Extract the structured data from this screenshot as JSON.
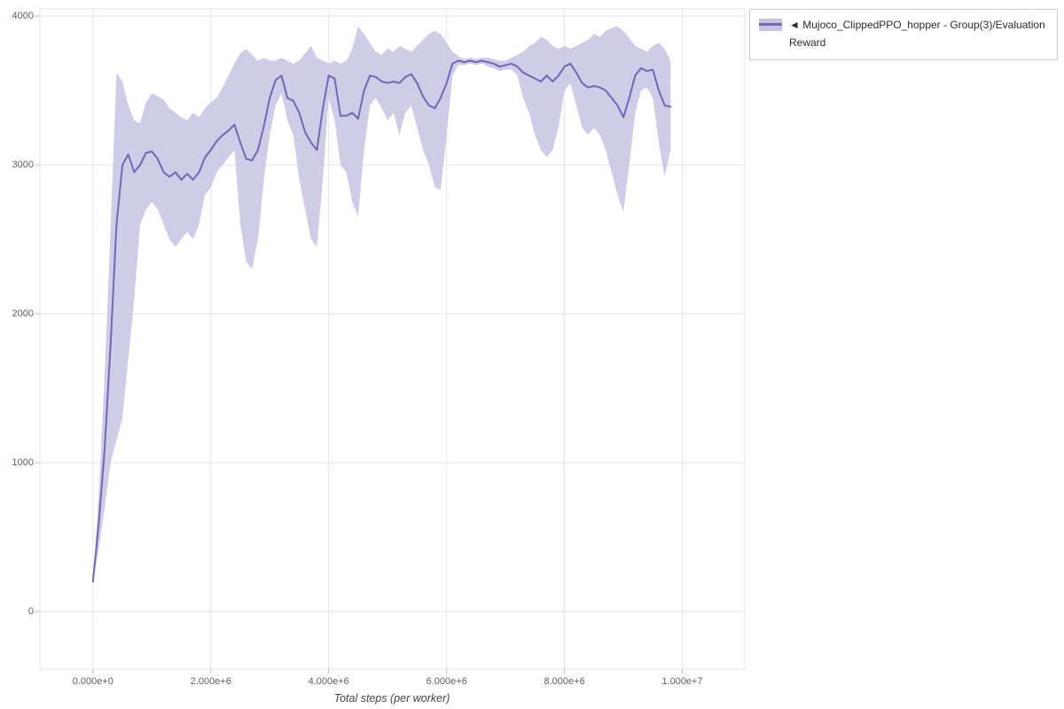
{
  "legend": {
    "marker": "◄",
    "label": "Mujoco_ClippedPPO_hopper - Group(3)/Evaluation Reward"
  },
  "colors": {
    "line": "#6f69b3",
    "band": "#c7c3e3",
    "band_opacity": 0.85,
    "grid": "#e5e5e5",
    "outline": "#e5e5e5",
    "tick_mark": "#bbbbbb",
    "tick_label": "#5f5f5f",
    "axis_label": "#444444",
    "legend_border": "#cccccc"
  },
  "chart_data": {
    "type": "line",
    "title": "",
    "xlabel": "Total steps (per worker)",
    "ylabel": "",
    "grid": true,
    "legend_position": "top-right-outside",
    "xlim": [
      -900000,
      11060000
    ],
    "ylim": [
      -387,
      4048
    ],
    "x_tick_values": [
      0,
      2000000,
      4000000,
      6000000,
      8000000,
      10000000
    ],
    "x_tick_labels": [
      "0.000e+0",
      "2.000e+6",
      "4.000e+6",
      "6.000e+6",
      "8.000e+6",
      "1.000e+7"
    ],
    "y_tick_values": [
      0,
      1000,
      2000,
      3000,
      4000
    ],
    "y_tick_labels": [
      "0",
      "1000",
      "2000",
      "3000",
      "4000"
    ],
    "series": [
      {
        "name": "Mujoco_ClippedPPO_hopper - Group(3)/Evaluation Reward",
        "x_start": 0,
        "x_step": 100000,
        "x_end": 9800000,
        "mean": [
          200,
          600,
          1100,
          1800,
          2600,
          3000,
          3070,
          2950,
          3000,
          3080,
          3090,
          3040,
          2950,
          2920,
          2950,
          2900,
          2940,
          2900,
          2950,
          3050,
          3100,
          3160,
          3200,
          3230,
          3270,
          3150,
          3040,
          3030,
          3100,
          3260,
          3450,
          3570,
          3600,
          3450,
          3430,
          3350,
          3220,
          3150,
          3100,
          3380,
          3600,
          3580,
          3330,
          3330,
          3350,
          3310,
          3500,
          3600,
          3590,
          3560,
          3550,
          3560,
          3550,
          3590,
          3610,
          3550,
          3460,
          3400,
          3380,
          3450,
          3550,
          3680,
          3700,
          3690,
          3700,
          3690,
          3700,
          3690,
          3680,
          3660,
          3670,
          3680,
          3660,
          3620,
          3600,
          3580,
          3560,
          3600,
          3560,
          3600,
          3660,
          3680,
          3620,
          3550,
          3520,
          3530,
          3520,
          3500,
          3450,
          3400,
          3320,
          3450,
          3600,
          3650,
          3630,
          3640,
          3500,
          3400,
          3390
        ],
        "lower": [
          200,
          420,
          700,
          1000,
          1150,
          1300,
          1700,
          2100,
          2600,
          2700,
          2750,
          2700,
          2600,
          2500,
          2450,
          2500,
          2550,
          2500,
          2600,
          2800,
          2850,
          2950,
          3000,
          3050,
          3100,
          2600,
          2350,
          2300,
          2500,
          2900,
          3200,
          3400,
          3480,
          3300,
          3200,
          2900,
          2700,
          2500,
          2450,
          2900,
          3450,
          3300,
          3000,
          2950,
          2750,
          2650,
          3100,
          3400,
          3450,
          3380,
          3300,
          3350,
          3200,
          3350,
          3400,
          3250,
          3100,
          3000,
          2850,
          2830,
          3200,
          3600,
          3670,
          3670,
          3680,
          3670,
          3680,
          3660,
          3650,
          3630,
          3640,
          3640,
          3600,
          3450,
          3350,
          3200,
          3100,
          3050,
          3100,
          3250,
          3500,
          3550,
          3400,
          3250,
          3200,
          3250,
          3200,
          3100,
          2950,
          2800,
          2680,
          3000,
          3350,
          3500,
          3520,
          3450,
          3150,
          2920,
          3100
        ],
        "upper": [
          200,
          800,
          1600,
          2600,
          3620,
          3560,
          3400,
          3300,
          3280,
          3420,
          3480,
          3460,
          3440,
          3380,
          3350,
          3320,
          3300,
          3350,
          3320,
          3380,
          3420,
          3450,
          3520,
          3600,
          3680,
          3750,
          3780,
          3740,
          3700,
          3720,
          3700,
          3700,
          3720,
          3700,
          3680,
          3700,
          3750,
          3800,
          3720,
          3700,
          3680,
          3700,
          3680,
          3700,
          3780,
          3930,
          3880,
          3820,
          3760,
          3740,
          3780,
          3760,
          3800,
          3780,
          3760,
          3800,
          3840,
          3880,
          3900,
          3880,
          3820,
          3760,
          3730,
          3710,
          3720,
          3710,
          3720,
          3720,
          3710,
          3700,
          3700,
          3720,
          3740,
          3760,
          3800,
          3820,
          3860,
          3840,
          3800,
          3780,
          3800,
          3780,
          3800,
          3820,
          3840,
          3880,
          3860,
          3900,
          3920,
          3930,
          3900,
          3850,
          3800,
          3780,
          3760,
          3800,
          3820,
          3780,
          3700
        ]
      }
    ]
  }
}
